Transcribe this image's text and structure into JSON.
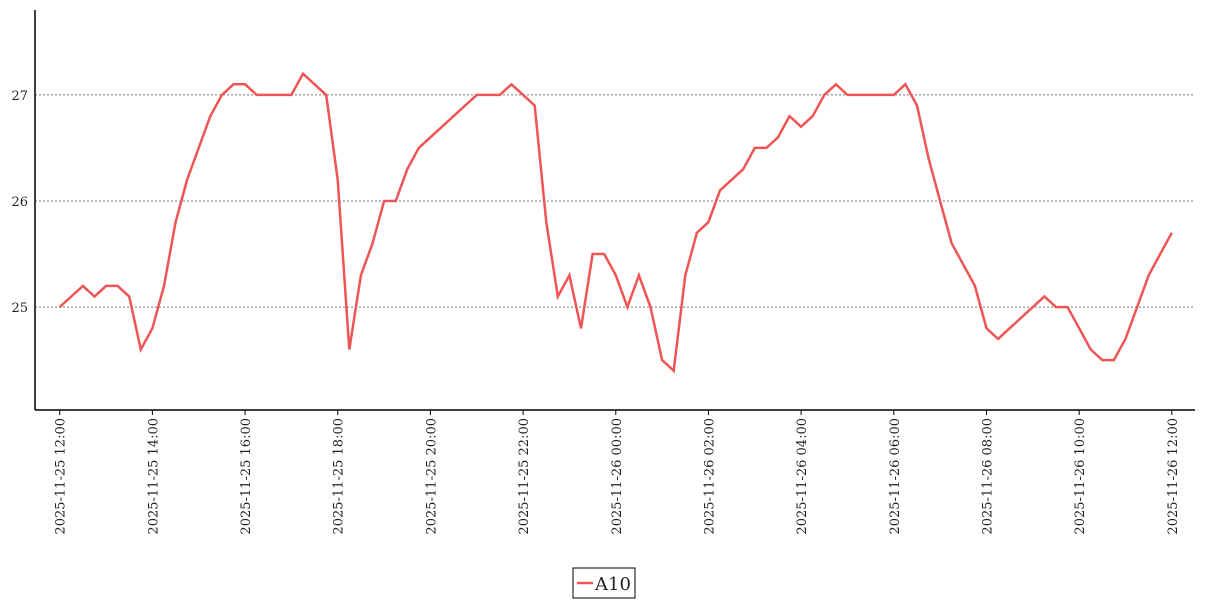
{
  "chart_data": {
    "type": "line",
    "x": [
      "2025-11-25 12:00",
      "2025-11-25 12:15",
      "2025-11-25 12:30",
      "2025-11-25 12:45",
      "2025-11-25 13:00",
      "2025-11-25 13:15",
      "2025-11-25 13:30",
      "2025-11-25 13:45",
      "2025-11-25 14:00",
      "2025-11-25 14:15",
      "2025-11-25 14:30",
      "2025-11-25 14:45",
      "2025-11-25 15:00",
      "2025-11-25 15:15",
      "2025-11-25 15:30",
      "2025-11-25 15:45",
      "2025-11-25 16:00",
      "2025-11-25 16:15",
      "2025-11-25 16:30",
      "2025-11-25 16:45",
      "2025-11-25 17:00",
      "2025-11-25 17:15",
      "2025-11-25 17:30",
      "2025-11-25 17:45",
      "2025-11-25 18:00",
      "2025-11-25 18:15",
      "2025-11-25 18:30",
      "2025-11-25 18:45",
      "2025-11-25 19:00",
      "2025-11-25 19:15",
      "2025-11-25 19:30",
      "2025-11-25 19:45",
      "2025-11-25 20:00",
      "2025-11-25 20:15",
      "2025-11-25 20:30",
      "2025-11-25 20:45",
      "2025-11-25 21:00",
      "2025-11-25 21:15",
      "2025-11-25 21:30",
      "2025-11-25 21:45",
      "2025-11-25 22:00",
      "2025-11-25 22:15",
      "2025-11-25 22:30",
      "2025-11-25 22:45",
      "2025-11-25 23:00",
      "2025-11-25 23:15",
      "2025-11-25 23:30",
      "2025-11-25 23:45",
      "2025-11-26 00:00",
      "2025-11-26 00:15",
      "2025-11-26 00:30",
      "2025-11-26 00:45",
      "2025-11-26 01:00",
      "2025-11-26 01:15",
      "2025-11-26 01:30",
      "2025-11-26 01:45",
      "2025-11-26 02:00",
      "2025-11-26 02:15",
      "2025-11-26 02:30",
      "2025-11-26 02:45",
      "2025-11-26 03:00",
      "2025-11-26 03:15",
      "2025-11-26 03:30",
      "2025-11-26 03:45",
      "2025-11-26 04:00",
      "2025-11-26 04:15",
      "2025-11-26 04:30",
      "2025-11-26 04:45",
      "2025-11-26 05:00",
      "2025-11-26 05:15",
      "2025-11-26 05:30",
      "2025-11-26 05:45",
      "2025-11-26 06:00",
      "2025-11-26 06:15",
      "2025-11-26 06:30",
      "2025-11-26 06:45",
      "2025-11-26 07:00",
      "2025-11-26 07:15",
      "2025-11-26 07:30",
      "2025-11-26 07:45",
      "2025-11-26 08:00",
      "2025-11-26 08:15",
      "2025-11-26 08:30",
      "2025-11-26 08:45",
      "2025-11-26 09:00",
      "2025-11-26 09:15",
      "2025-11-26 09:30",
      "2025-11-26 09:45",
      "2025-11-26 10:00",
      "2025-11-26 10:15",
      "2025-11-26 10:30",
      "2025-11-26 10:45",
      "2025-11-26 11:00",
      "2025-11-26 11:15",
      "2025-11-26 11:30",
      "2025-11-26 11:45",
      "2025-11-26 12:00"
    ],
    "series": [
      {
        "name": "A10",
        "color": "#f05555",
        "values": [
          25.0,
          25.1,
          25.2,
          25.1,
          25.2,
          25.2,
          25.1,
          24.6,
          24.8,
          25.2,
          25.8,
          26.2,
          26.5,
          26.8,
          27.0,
          27.1,
          27.1,
          27.0,
          27.0,
          27.0,
          27.0,
          27.2,
          27.1,
          27.0,
          26.2,
          24.6,
          25.3,
          25.6,
          26.0,
          26.0,
          26.3,
          26.5,
          26.6,
          26.7,
          26.8,
          26.9,
          27.0,
          27.0,
          27.0,
          27.1,
          27.0,
          26.9,
          25.8,
          25.1,
          25.3,
          24.8,
          25.5,
          25.5,
          25.3,
          25.0,
          25.3,
          25.0,
          24.5,
          24.4,
          25.3,
          25.7,
          25.8,
          26.1,
          26.2,
          26.3,
          26.5,
          26.5,
          26.6,
          26.8,
          26.7,
          26.8,
          27.0,
          27.1,
          27.0,
          27.0,
          27.0,
          27.0,
          27.0,
          27.1,
          26.9,
          26.4,
          26.0,
          25.6,
          25.4,
          25.2,
          24.8,
          24.7,
          24.8,
          24.9,
          25.0,
          25.1,
          25.0,
          25.0,
          24.8,
          24.6,
          24.5,
          24.5,
          24.7,
          25.0,
          25.3,
          25.5,
          25.7
        ]
      }
    ],
    "xlim": [
      "2025-11-25 11:28",
      "2025-11-26 12:30"
    ],
    "xticks": [
      "2025-11-25 12:00",
      "2025-11-25 14:00",
      "2025-11-25 16:00",
      "2025-11-25 18:00",
      "2025-11-25 20:00",
      "2025-11-25 22:00",
      "2025-11-26 00:00",
      "2025-11-26 02:00",
      "2025-11-26 04:00",
      "2025-11-26 06:00",
      "2025-11-26 08:00",
      "2025-11-26 10:00",
      "2025-11-26 12:00"
    ],
    "ylim": [
      24.03,
      27.8
    ],
    "yticks": [
      25,
      26,
      27
    ],
    "grid": true,
    "legend": "lower center"
  }
}
